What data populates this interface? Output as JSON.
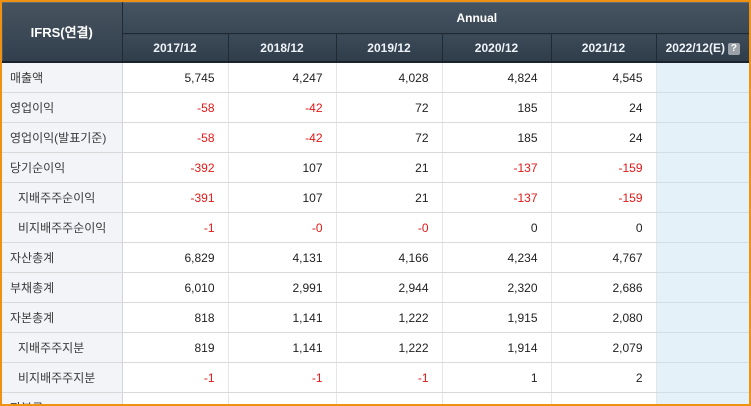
{
  "header": {
    "corner_label": "IFRS(연결)",
    "group_label": "Annual",
    "year_columns": [
      "2017/12",
      "2018/12",
      "2019/12",
      "2020/12",
      "2021/12",
      "2022/12(E)"
    ],
    "estimate_column_index": 5,
    "help_icon": "?"
  },
  "rows": [
    {
      "label": "매출액",
      "indent": false,
      "values": [
        "5,745",
        "4,247",
        "4,028",
        "4,824",
        "4,545",
        ""
      ]
    },
    {
      "label": "영업이익",
      "indent": false,
      "values": [
        "-58",
        "-42",
        "72",
        "185",
        "24",
        ""
      ]
    },
    {
      "label": "영업이익(발표기준)",
      "indent": false,
      "values": [
        "-58",
        "-42",
        "72",
        "185",
        "24",
        ""
      ]
    },
    {
      "label": "당기순이익",
      "indent": false,
      "values": [
        "-392",
        "107",
        "21",
        "-137",
        "-159",
        ""
      ]
    },
    {
      "label": "지배주주순이익",
      "indent": true,
      "values": [
        "-391",
        "107",
        "21",
        "-137",
        "-159",
        ""
      ]
    },
    {
      "label": "비지배주주순이익",
      "indent": true,
      "values": [
        "-1",
        "-0",
        "-0",
        "0",
        "0",
        ""
      ]
    },
    {
      "label": "자산총계",
      "indent": false,
      "values": [
        "6,829",
        "4,131",
        "4,166",
        "4,234",
        "4,767",
        ""
      ]
    },
    {
      "label": "부채총계",
      "indent": false,
      "values": [
        "6,010",
        "2,991",
        "2,944",
        "2,320",
        "2,686",
        ""
      ]
    },
    {
      "label": "자본총계",
      "indent": false,
      "values": [
        "818",
        "1,141",
        "1,222",
        "1,915",
        "2,080",
        ""
      ]
    },
    {
      "label": "지배주주지분",
      "indent": true,
      "values": [
        "819",
        "1,141",
        "1,222",
        "1,914",
        "2,079",
        ""
      ]
    },
    {
      "label": "비지배주주지분",
      "indent": true,
      "values": [
        "-1",
        "-1",
        "-1",
        "1",
        "2",
        ""
      ]
    },
    {
      "label": "자본금",
      "indent": false,
      "partial": true,
      "values": [
        "",
        "",
        "",
        "",
        "",
        ""
      ]
    }
  ],
  "colors": {
    "frame_border": "#ef9211",
    "header_bg": "#3a4755",
    "header_text": "#ffffff",
    "label_cell_bg": "#f2f4f8",
    "estimate_col_bg": "#e4f1f8",
    "negative_value": "#e51717",
    "value_text": "#1f1f1f"
  }
}
